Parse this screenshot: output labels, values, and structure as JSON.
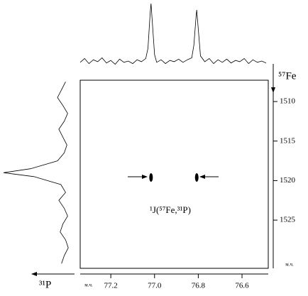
{
  "chart_data": {
    "type": "scatter",
    "x_label": "м.ч.",
    "y_label": "м.ч.",
    "x_axis_title": "³¹P",
    "y_axis_title": "⁵⁷Fe",
    "annotation": "¹J(⁵⁷Fe,³¹P)",
    "xlim": [
      77.34,
      76.48
    ],
    "xticks": [
      77.2,
      {
        "value": 77,
        "label": "77.0"
      },
      76.8,
      76.6
    ],
    "ylim": [
      1507.3,
      1531.1
    ],
    "yticks": [
      1510,
      1515,
      1520,
      1525
    ],
    "color": "#000000",
    "peaks": {
      "x": [
        77.016,
        76.807
      ],
      "y": [
        1519.6,
        1519.6
      ]
    },
    "top_projection": {
      "x": [
        77.34,
        77.32,
        77.3,
        77.28,
        77.26,
        77.24,
        77.22,
        77.2,
        77.18,
        77.16,
        77.14,
        77.12,
        77.1,
        77.08,
        77.06,
        77.04,
        77.03,
        77.02,
        77.016,
        77.01,
        77.0,
        76.99,
        76.97,
        76.95,
        76.93,
        76.91,
        76.89,
        76.87,
        76.85,
        76.83,
        76.82,
        76.81,
        76.807,
        76.8,
        76.79,
        76.77,
        76.75,
        76.73,
        76.71,
        76.69,
        76.67,
        76.65,
        76.63,
        76.61,
        76.59,
        76.57,
        76.55,
        76.53,
        76.51,
        76.49
      ],
      "values": [
        8,
        14,
        6,
        12,
        9,
        15,
        7,
        11,
        5,
        13,
        8,
        10,
        6,
        12,
        9,
        14,
        30,
        85,
        100,
        70,
        20,
        8,
        12,
        6,
        11,
        9,
        13,
        8,
        12,
        15,
        35,
        80,
        90,
        60,
        18,
        9,
        14,
        6,
        12,
        8,
        13,
        7,
        11,
        9,
        14,
        6,
        12,
        8,
        10,
        7
      ]
    },
    "left_projection": {
      "y": [
        1507.5,
        1508.5,
        1509.5,
        1510.5,
        1511.5,
        1512.5,
        1513.5,
        1514.5,
        1515.5,
        1516.5,
        1517.5,
        1518.5,
        1519,
        1519.5,
        1520.5,
        1521.5,
        1522.5,
        1523.5,
        1524.5,
        1525.5,
        1526.5,
        1527.5,
        1528.5,
        1529.5,
        1530.5
      ],
      "values": [
        8,
        14,
        20,
        12,
        5,
        10,
        18,
        12,
        6,
        10,
        20,
        60,
        100,
        55,
        15,
        8,
        18,
        10,
        5,
        12,
        16,
        8,
        4,
        10,
        14
      ]
    }
  }
}
